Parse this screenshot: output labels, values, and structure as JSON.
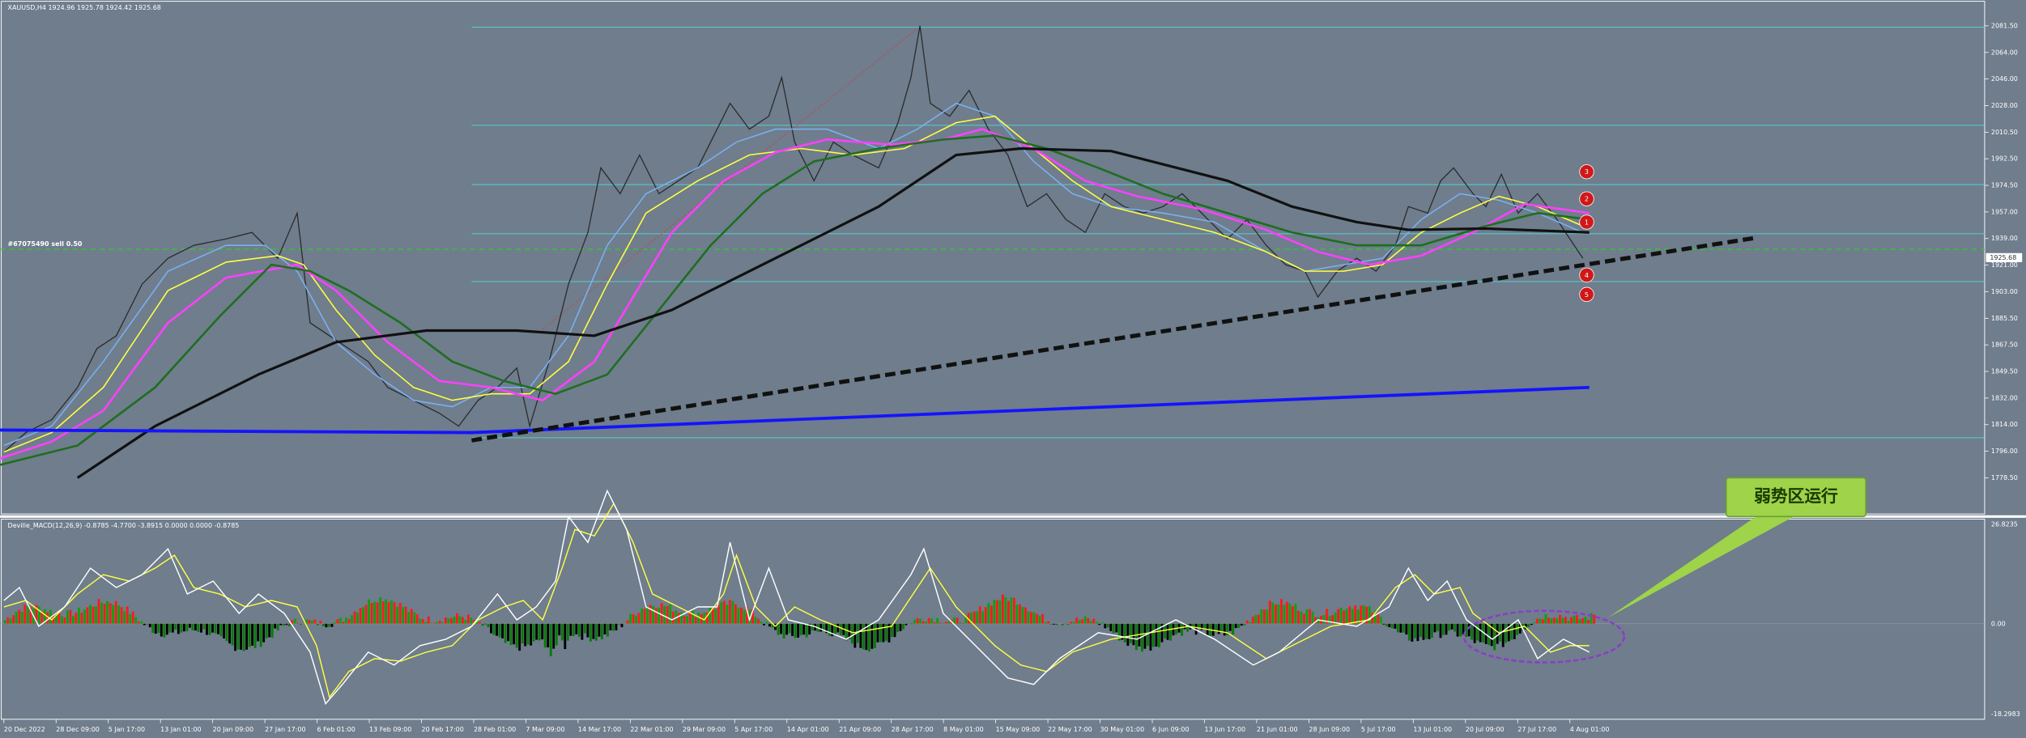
{
  "header": {
    "title": "XAUUSD,H4  1924.96 1925.78 1924.42 1925.68"
  },
  "order_label": "#67075490 sell 0.50",
  "current_price": "1925.68",
  "price_axis": {
    "labels": [
      "2081.50",
      "2064.00",
      "2046.00",
      "2028.00",
      "2010.50",
      "1992.50",
      "1974.50",
      "1957.00",
      "1939.00",
      "1921.00",
      "1903.00",
      "1885.50",
      "1867.50",
      "1849.50",
      "1832.00",
      "1814.00",
      "1796.00",
      "1778.50"
    ]
  },
  "markers": [
    "3",
    "2",
    "1",
    "4",
    "5"
  ],
  "macd": {
    "title": "Deville_MACD(12,26,9) -0.8785 -4.7700 -3.8915 0.0000 0.0000 -0.8785",
    "labels": [
      "26.8235",
      "0.00",
      "-18.2983"
    ]
  },
  "time_axis": {
    "labels": [
      "20 Dec 2022",
      "28 Dec 09:00",
      "5 Jan 17:00",
      "13 Jan 01:00",
      "20 Jan 09:00",
      "27 Jan 17:00",
      "6 Feb 01:00",
      "13 Feb 09:00",
      "20 Feb 17:00",
      "28 Feb 01:00",
      "7 Mar 09:00",
      "14 Mar 17:00",
      "22 Mar 01:00",
      "29 Mar 09:00",
      "5 Apr 17:00",
      "14 Apr 01:00",
      "21 Apr 09:00",
      "28 Apr 17:00",
      "8 May 01:00",
      "15 May 09:00",
      "22 May 17:00",
      "30 May 01:00",
      "6 Jun 09:00",
      "13 Jun 17:00",
      "21 Jun 01:00",
      "28 Jun 09:00",
      "5 Jul 17:00",
      "13 Jul 01:00",
      "20 Jul 09:00",
      "27 Jul 17:00",
      "4 Aug 01:00"
    ]
  },
  "callout": {
    "text": "弱势区运行"
  }
}
